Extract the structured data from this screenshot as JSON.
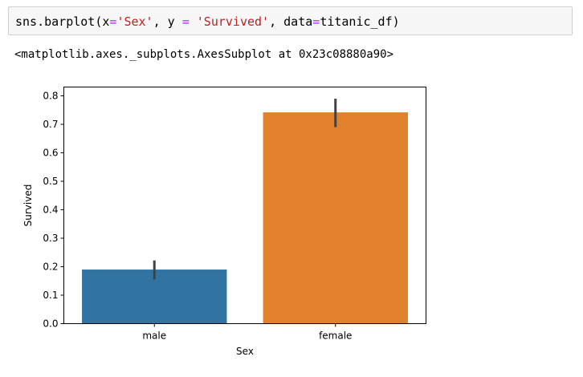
{
  "code_cell": {
    "fn": "sns.barplot(x",
    "eq1": "=",
    "arg_x": "'Sex'",
    "sep1": ", y ",
    "eq2": "=",
    "sep2": " ",
    "arg_y": "'Survived'",
    "sep3": ", data",
    "eq3": "=",
    "tail": "titanic_df)"
  },
  "output": {
    "repr": "<matplotlib.axes._subplots.AxesSubplot at 0x23c08880a90>"
  },
  "colors": {
    "male": "#3274a1",
    "female": "#e1812c",
    "error_bar": "#424242"
  },
  "chart_data": {
    "type": "bar",
    "categories": [
      "male",
      "female"
    ],
    "values": [
      0.19,
      0.742
    ],
    "error_bars": [
      [
        0.155,
        0.222
      ],
      [
        0.69,
        0.79
      ]
    ],
    "xlabel": "Sex",
    "ylabel": "Survived",
    "ylim": [
      0,
      0.83
    ],
    "yticks": [
      0.0,
      0.1,
      0.2,
      0.3,
      0.4,
      0.5,
      0.6,
      0.7,
      0.8
    ],
    "ytick_labels": [
      "0.0",
      "0.1",
      "0.2",
      "0.3",
      "0.4",
      "0.5",
      "0.6",
      "0.7",
      "0.8"
    ],
    "grid": false,
    "legend": "none"
  }
}
